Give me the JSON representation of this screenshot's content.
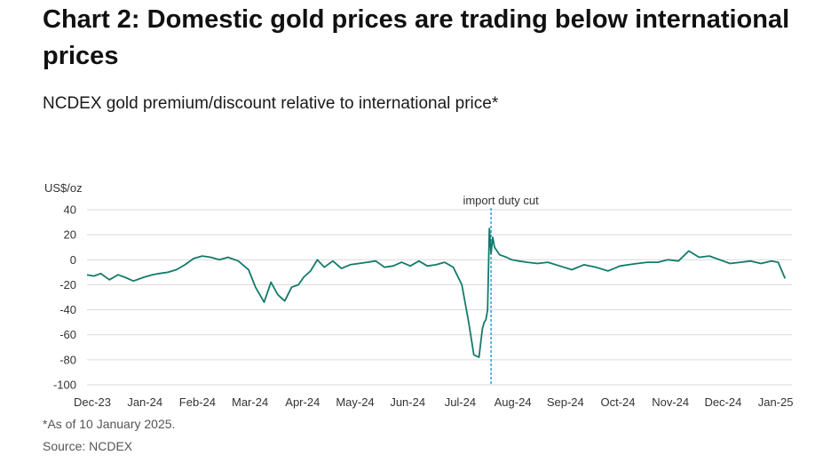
{
  "title": "Chart 2: Domestic gold prices are trading below international prices",
  "subtitle": "NCDEX gold premium/discount relative to international price*",
  "footnote": "*As of 10 January 2025.",
  "source": "Source: NCDEX",
  "colors": {
    "line": "#137a6a",
    "annotation": "#2e9fd9",
    "grid": "#d9d9d9",
    "text": "#333333"
  },
  "chart_data": {
    "type": "line",
    "title": "",
    "ylabel": "US$/oz",
    "xlabel": "",
    "ylim": [
      -100,
      40
    ],
    "yticks": [
      40,
      20,
      0,
      -20,
      -40,
      -60,
      -80,
      -100
    ],
    "x_tick_labels": [
      "Dec-23",
      "Jan-24",
      "Feb-24",
      "Mar-24",
      "Apr-24",
      "May-24",
      "Jun-24",
      "Jul-24",
      "Aug-24",
      "Sep-24",
      "Oct-24",
      "Nov-24",
      "Dec-24",
      "Jan-25"
    ],
    "grid": true,
    "annotation": {
      "label": "import duty cut",
      "x": "2024-07-23"
    },
    "series": [
      {
        "x": [
          "2023-12-01",
          "2023-12-05",
          "2023-12-09",
          "2023-12-14",
          "2023-12-19",
          "2023-12-23",
          "2023-12-28",
          "2024-01-03",
          "2024-01-08",
          "2024-01-12",
          "2024-01-17",
          "2024-01-22",
          "2024-01-27",
          "2024-02-01",
          "2024-02-06",
          "2024-02-11",
          "2024-02-16",
          "2024-02-21",
          "2024-02-27",
          "2024-03-04",
          "2024-03-08",
          "2024-03-13",
          "2024-03-17",
          "2024-03-21",
          "2024-03-25",
          "2024-03-29",
          "2024-04-02",
          "2024-04-05",
          "2024-04-09",
          "2024-04-13",
          "2024-04-17",
          "2024-04-22",
          "2024-04-27",
          "2024-05-02",
          "2024-05-07",
          "2024-05-12",
          "2024-05-17",
          "2024-05-22",
          "2024-05-27",
          "2024-06-01",
          "2024-06-06",
          "2024-06-11",
          "2024-06-16",
          "2024-06-21",
          "2024-06-26",
          "2024-07-01",
          "2024-07-06",
          "2024-07-10",
          "2024-07-13",
          "2024-07-16",
          "2024-07-18",
          "2024-07-19",
          "2024-07-20",
          "2024-07-21",
          "2024-07-22",
          "2024-07-23",
          "2024-07-24",
          "2024-07-25",
          "2024-07-28",
          "2024-08-01",
          "2024-08-04",
          "2024-08-08",
          "2024-08-13",
          "2024-08-19",
          "2024-08-25",
          "2024-09-01",
          "2024-09-08",
          "2024-09-15",
          "2024-09-22",
          "2024-09-29",
          "2024-10-06",
          "2024-10-11",
          "2024-10-16",
          "2024-10-22",
          "2024-10-28",
          "2024-11-03",
          "2024-11-09",
          "2024-11-15",
          "2024-11-21",
          "2024-11-27",
          "2024-12-03",
          "2024-12-09",
          "2024-12-15",
          "2024-12-21",
          "2024-12-27",
          "2025-01-02",
          "2025-01-06",
          "2025-01-10"
        ],
        "values": [
          -12,
          -13,
          -11,
          -16,
          -12,
          -14,
          -17,
          -14,
          -12,
          -11,
          -10,
          -8,
          -4,
          1,
          3,
          2,
          0,
          2,
          -1,
          -8,
          -22,
          -34,
          -18,
          -28,
          -33,
          -22,
          -20,
          -14,
          -9,
          0,
          -6,
          -1,
          -7,
          -4,
          -3,
          -2,
          -1,
          -6,
          -5,
          -2,
          -5,
          -1,
          -5,
          -4,
          -2,
          -6,
          -20,
          -50,
          -76,
          -78,
          -55,
          -50,
          -48,
          -40,
          25,
          5,
          18,
          10,
          4,
          2,
          0,
          -1,
          -2,
          -3,
          -2,
          -5,
          -8,
          -4,
          -6,
          -9,
          -5,
          -4,
          -3,
          -2,
          -2,
          0,
          -1,
          7,
          2,
          3,
          0,
          -3,
          -2,
          -1,
          -3,
          -1,
          -2,
          -15
        ]
      }
    ]
  }
}
